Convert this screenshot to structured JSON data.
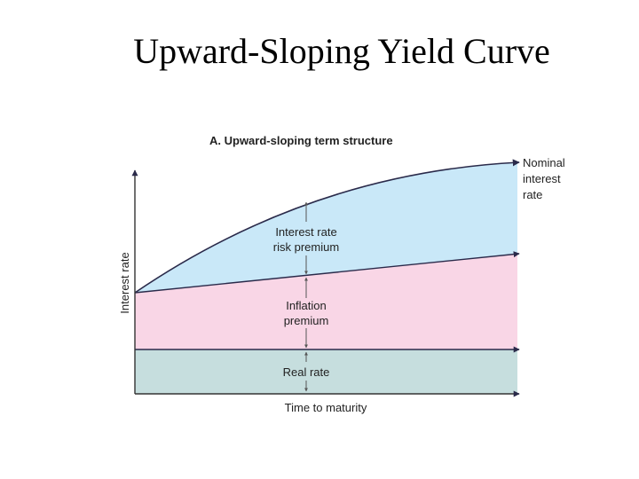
{
  "slide": {
    "title": "Upward-Sloping Yield Curve"
  },
  "diagram": {
    "heading": "A. Upward-sloping term structure",
    "y_axis_label": "Interest rate",
    "x_axis_label": "Time to maturity",
    "curve_label_lines": [
      "Nominal",
      "interest",
      "rate"
    ],
    "bands": {
      "risk_premium_lines": [
        "Interest rate",
        "risk premium"
      ],
      "inflation_lines": [
        "Inflation",
        "premium"
      ],
      "real_rate": "Real rate"
    },
    "colors": {
      "risk_premium": "#c9e8f8",
      "inflation_premium": "#f9d6e6",
      "real_rate": "#c6dede",
      "curve": "#2a2a4a",
      "axis": "#333333"
    }
  }
}
